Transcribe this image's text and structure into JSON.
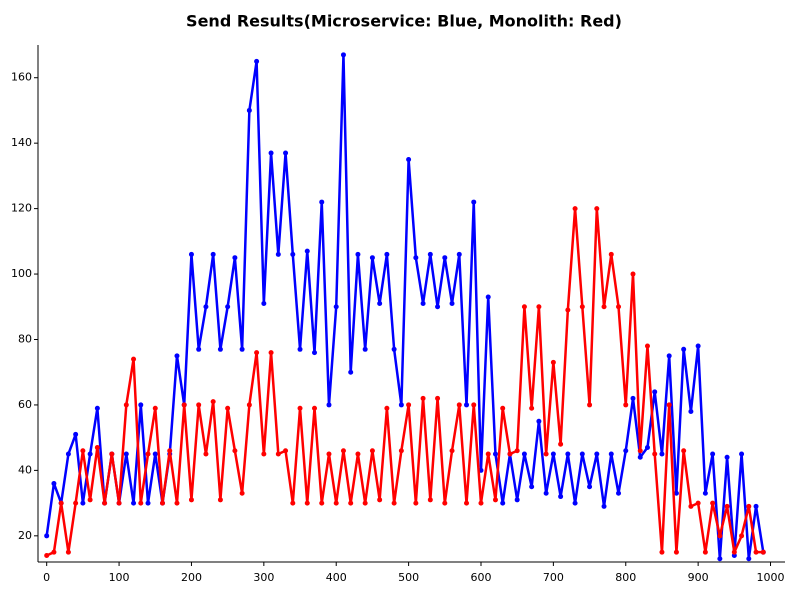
{
  "chart_data": {
    "type": "line",
    "title": "Send Results(Microservice: Blue, Monolith: Red)",
    "x": [
      0,
      10,
      20,
      30,
      40,
      50,
      60,
      70,
      80,
      90,
      100,
      110,
      120,
      130,
      140,
      150,
      160,
      170,
      180,
      190,
      200,
      210,
      220,
      230,
      240,
      250,
      260,
      270,
      280,
      290,
      300,
      310,
      320,
      330,
      340,
      350,
      360,
      370,
      380,
      390,
      400,
      410,
      420,
      430,
      440,
      450,
      460,
      470,
      480,
      490,
      500,
      510,
      520,
      530,
      540,
      550,
      560,
      570,
      580,
      590,
      600,
      610,
      620,
      630,
      640,
      650,
      660,
      670,
      680,
      690,
      700,
      710,
      720,
      730,
      740,
      750,
      760,
      770,
      780,
      790,
      800,
      810,
      820,
      830,
      840,
      850,
      860,
      870,
      880,
      890,
      900,
      910,
      920,
      930,
      940,
      950,
      960,
      970,
      980,
      990
    ],
    "series": [
      {
        "color": "#0000ff",
        "values": [
          20,
          36,
          30,
          45,
          51,
          30,
          45,
          59,
          30,
          45,
          30,
          45,
          30,
          60,
          30,
          45,
          30,
          45,
          75,
          60,
          106,
          77,
          90,
          106,
          77,
          90,
          105,
          77,
          150,
          165,
          91,
          137,
          106,
          137,
          106,
          77,
          107,
          76,
          122,
          60,
          90,
          167,
          70,
          106,
          77,
          105,
          91,
          106,
          77,
          60,
          135,
          105,
          91,
          106,
          90,
          105,
          91,
          106,
          60,
          122,
          40,
          93,
          45,
          30,
          45,
          31,
          45,
          35,
          55,
          33,
          45,
          32,
          45,
          30,
          45,
          35,
          45,
          29,
          45,
          33,
          46,
          62,
          44,
          47,
          64,
          45,
          75,
          33,
          77,
          58,
          78,
          33,
          45,
          13,
          44,
          14,
          45,
          13,
          29,
          15
        ]
      },
      {
        "color": "#ff0000",
        "values": [
          14,
          15,
          30,
          15,
          30,
          46,
          31,
          47,
          30,
          45,
          30,
          60,
          74,
          30,
          45,
          59,
          30,
          46,
          30,
          60,
          31,
          60,
          45,
          61,
          31,
          59,
          46,
          33,
          60,
          76,
          45,
          76,
          45,
          46,
          30,
          59,
          30,
          59,
          30,
          45,
          30,
          46,
          30,
          45,
          30,
          46,
          31,
          59,
          30,
          46,
          60,
          30,
          62,
          31,
          62,
          30,
          46,
          60,
          30,
          60,
          30,
          45,
          31,
          59,
          45,
          46,
          90,
          59,
          90,
          45,
          73,
          48,
          89,
          120,
          90,
          60,
          120,
          90,
          106,
          90,
          60,
          100,
          46,
          78,
          45,
          15,
          60,
          15,
          46,
          29,
          30,
          15,
          30,
          20,
          29,
          15,
          20,
          29,
          15,
          15
        ]
      }
    ],
    "xlim": [
      -12,
      1020
    ],
    "ylim": [
      12,
      170
    ],
    "xticks": [
      0,
      100,
      200,
      300,
      400,
      500,
      600,
      700,
      800,
      900,
      1000
    ],
    "yticks": [
      20,
      40,
      60,
      80,
      100,
      120,
      140,
      160
    ]
  }
}
